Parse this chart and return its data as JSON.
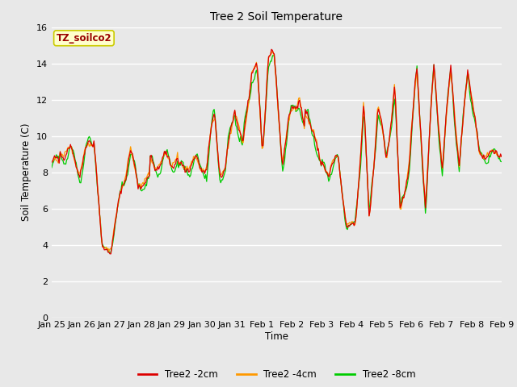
{
  "title": "Tree 2 Soil Temperature",
  "ylabel": "Soil Temperature (C)",
  "xlabel": "Time",
  "annotation_text": "TZ_soilco2",
  "annotation_bg": "#ffffcc",
  "annotation_border": "#cccc00",
  "annotation_text_color": "#990000",
  "ylim": [
    0,
    16
  ],
  "yticks": [
    0,
    2,
    4,
    6,
    8,
    10,
    12,
    14,
    16
  ],
  "bg_color": "#e8e8e8",
  "plot_bg_color": "#e8e8e8",
  "line_colors": {
    "2cm": "#dd0000",
    "4cm": "#ff9900",
    "8cm": "#00cc00"
  },
  "legend_labels": [
    "Tree2 -2cm",
    "Tree2 -4cm",
    "Tree2 -8cm"
  ],
  "x_tick_labels": [
    "Jan 25",
    "Jan 26",
    "Jan 27",
    "Jan 28",
    "Jan 29",
    "Jan 30",
    "Jan 31",
    "Feb 1",
    "Feb 2",
    "Feb 3",
    "Feb 4",
    "Feb 5",
    "Feb 6",
    "Feb 7",
    "Feb 8",
    "Feb 9"
  ],
  "figsize": [
    6.4,
    4.8
  ],
  "dpi": 100
}
